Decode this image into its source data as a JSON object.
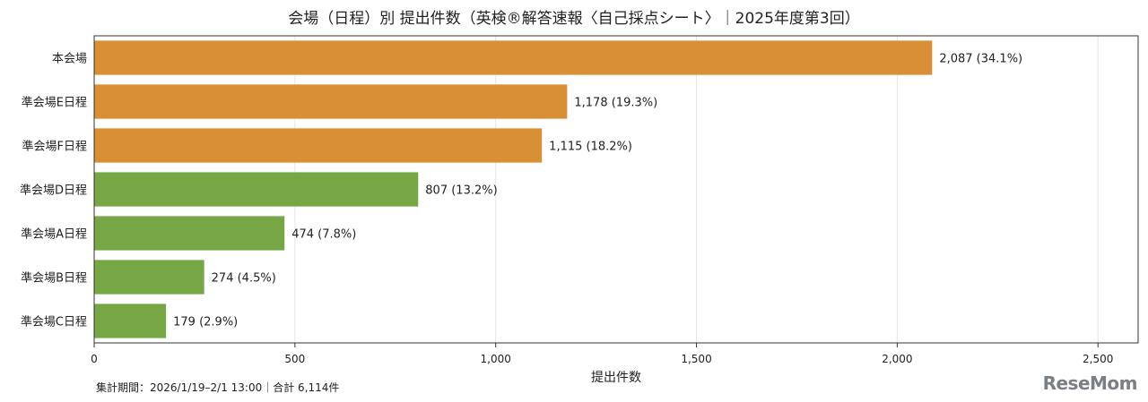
{
  "chart_data": {
    "type": "bar",
    "orientation": "horizontal",
    "title": "会場（日程）別 提出件数（英検®解答速報〈自己採点シート〉｜2025年度第3回）",
    "xlabel": "提出件数",
    "ylabel": "",
    "xlim": [
      0,
      2600
    ],
    "xticks": [
      0,
      500,
      1000,
      1500,
      2000,
      2500
    ],
    "xtick_labels": [
      "0",
      "500",
      "1,000",
      "1,500",
      "2,000",
      "2,500"
    ],
    "grid": "vertical",
    "categories": [
      "本会場",
      "準会場E日程",
      "準会場F日程",
      "準会場D日程",
      "準会場A日程",
      "準会場B日程",
      "準会場C日程"
    ],
    "values": [
      2087,
      1178,
      1115,
      807,
      474,
      274,
      179
    ],
    "value_labels": [
      "2,087 (34.1%)",
      "1,178 (19.3%)",
      "1,115 (18.2%)",
      "807 (13.2%)",
      "474 (7.8%)",
      "274 (4.5%)",
      "179 (2.9%)"
    ],
    "colors": [
      "#d98f33",
      "#d98f33",
      "#d98f33",
      "#76a744",
      "#76a744",
      "#76a744",
      "#76a744"
    ]
  },
  "footnote": "集計期間：2026/1/19–2/1 13:00｜合計 6,114件",
  "logo": "ReseMom"
}
